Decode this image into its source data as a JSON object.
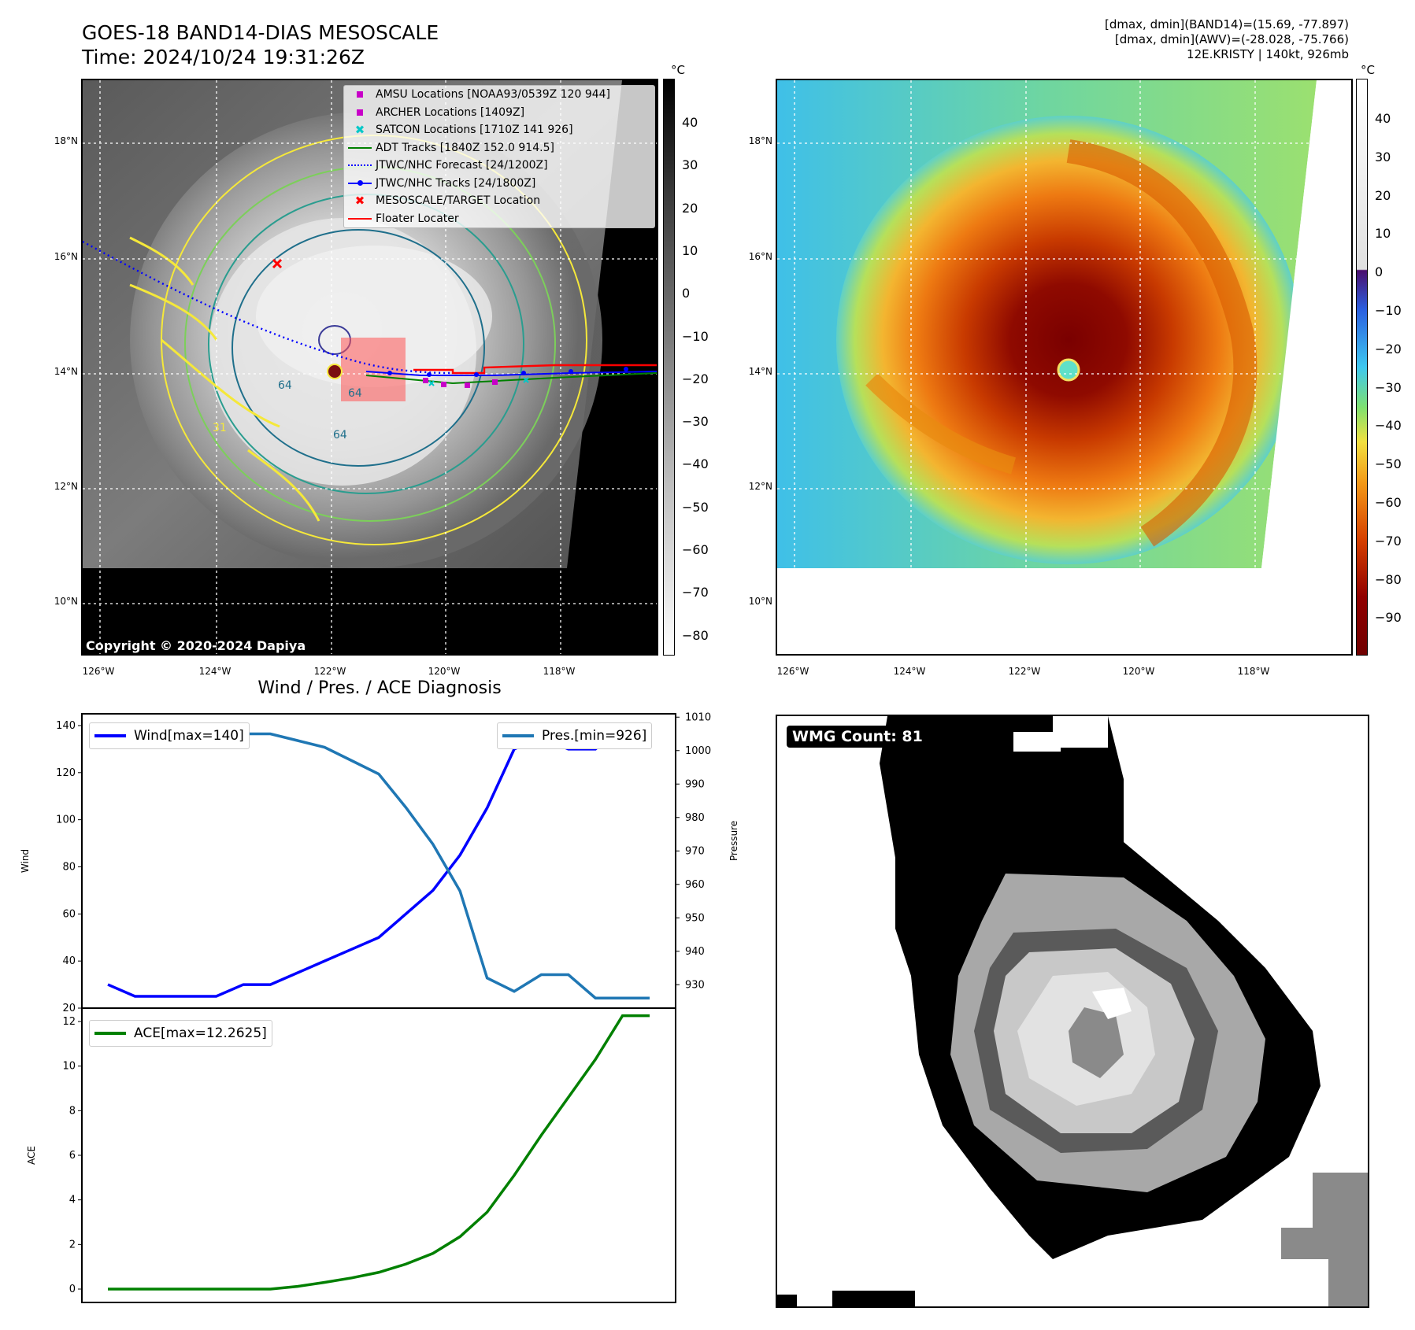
{
  "header": {
    "title_line1": "GOES-18 BAND14-DIAS MESOSCALE",
    "title_line2": "Time: 2024/10/24 19:31:26Z",
    "info_line1": "[dmax, dmin](BAND14)=(15.69, -77.897)",
    "info_line2": "[dmax, dmin](AWV)=(-28.028, -75.766)",
    "info_line3": "12E.KRISTY | 140kt, 926mb"
  },
  "map_axes": {
    "lat_labels": [
      "18°N",
      "16°N",
      "14°N",
      "12°N",
      "10°N"
    ],
    "lon_labels": [
      "126°W",
      "124°W",
      "122°W",
      "120°W",
      "118°W"
    ]
  },
  "left_map": {
    "colorbar_unit": "°C",
    "colorbar_ticks": [
      "40",
      "30",
      "20",
      "10",
      "0",
      "−10",
      "−20",
      "−30",
      "−40",
      "−50",
      "−60",
      "−70",
      "−80"
    ],
    "copyright": "Copyright © 2020-2024 Dapiya",
    "contour_labels": [
      "64",
      "64",
      "64",
      "31"
    ],
    "legend": [
      {
        "label": "AMSU Locations [NOAA93/0539Z 120 944]",
        "symbol": "square",
        "color": "#c800c8"
      },
      {
        "label": "ARCHER Locations [1409Z]",
        "symbol": "square",
        "color": "#c800c8"
      },
      {
        "label": "SATCON Locations [1710Z 141 926]",
        "symbol": "x",
        "color": "#00c8c8"
      },
      {
        "label": "ADT Tracks [1840Z 152.0 914.5]",
        "symbol": "line",
        "color": "#008000"
      },
      {
        "label": "JTWC/NHC Forecast [24/1200Z]",
        "symbol": "dotted",
        "color": "#0000ff"
      },
      {
        "label": "JTWC/NHC Tracks [24/1800Z]",
        "symbol": "line-dot",
        "color": "#0000ff"
      },
      {
        "label": "MESOSCALE/TARGET Location",
        "symbol": "x",
        "color": "#ff0000"
      },
      {
        "label": "Floater Locater",
        "symbol": "line",
        "color": "#ff0000"
      }
    ]
  },
  "right_map": {
    "colorbar_unit": "°C",
    "colorbar_ticks": [
      "40",
      "30",
      "20",
      "10",
      "0",
      "−10",
      "−20",
      "−30",
      "−40",
      "−50",
      "−60",
      "−70",
      "−80",
      "−90"
    ]
  },
  "diagnosis": {
    "title": "Wind / Pres. / ACE Diagnosis",
    "wind_ylabel": "Wind",
    "pressure_ylabel": "Pressure",
    "ace_ylabel": "ACE",
    "wind_legend": "Wind[max=140]",
    "pres_legend": "Pres.[min=926]",
    "ace_legend": "ACE[max=12.2625]",
    "wind_ticks": [
      "140",
      "120",
      "100",
      "80",
      "60",
      "40",
      "20"
    ],
    "pres_ticks": [
      "1010",
      "1000",
      "990",
      "980",
      "970",
      "960",
      "950",
      "940",
      "930"
    ],
    "ace_ticks": [
      "12",
      "10",
      "8",
      "6",
      "4",
      "2",
      "0"
    ],
    "colors": {
      "wind": "#0000ff",
      "pressure": "#1f77b4",
      "ace": "#008000"
    }
  },
  "chart_data": [
    {
      "type": "line",
      "x": [
        0,
        1,
        2,
        3,
        4,
        5,
        6,
        7,
        8,
        9,
        10,
        11,
        12,
        13,
        14,
        15,
        16,
        17,
        18,
        19,
        20
      ],
      "series": [
        {
          "name": "Wind[max=140]",
          "axis": "left",
          "values": [
            30,
            25,
            25,
            25,
            25,
            30,
            30,
            35,
            40,
            45,
            50,
            60,
            70,
            85,
            105,
            130,
            135,
            130,
            130,
            140,
            140
          ]
        },
        {
          "name": "Pres.[min=926]",
          "axis": "right",
          "values": [
            1006,
            1006,
            1006,
            1007,
            1007,
            1005,
            1005,
            1003,
            1001,
            997,
            993,
            983,
            972,
            958,
            932,
            928,
            933,
            933,
            926,
            926,
            926
          ]
        }
      ],
      "ylabel": "Wind",
      "ylim": [
        20,
        145
      ],
      "y2label": "Pressure",
      "y2lim": [
        923,
        1011
      ]
    },
    {
      "type": "line",
      "x": [
        0,
        1,
        2,
        3,
        4,
        5,
        6,
        7,
        8,
        9,
        10,
        11,
        12,
        13,
        14,
        15,
        16,
        17,
        18,
        19,
        20
      ],
      "series": [
        {
          "name": "ACE[max=12.2625]",
          "values": [
            0,
            0,
            0,
            0,
            0,
            0,
            0,
            0.12,
            0.3,
            0.5,
            0.75,
            1.12,
            1.6,
            2.35,
            3.45,
            5.1,
            6.9,
            8.6,
            10.3,
            12.26,
            12.26
          ]
        }
      ],
      "ylabel": "ACE",
      "ylim": [
        -0.6,
        12.6
      ]
    }
  ],
  "wmg": {
    "badge": "WMG Count: 81"
  }
}
